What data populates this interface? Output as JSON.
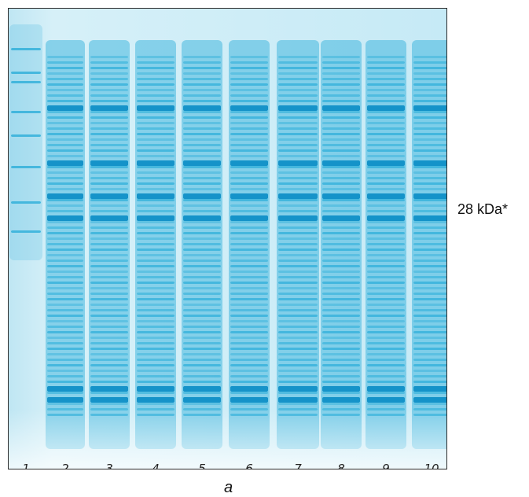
{
  "gel": {
    "marker_label": "28 kDa*",
    "panel_label": "a",
    "lane_labels": [
      "1",
      "2",
      "3",
      "4",
      "5",
      "6",
      "7",
      "8",
      "9",
      "10"
    ]
  },
  "colors": {
    "gel_background": "#bfe6f3",
    "band": "#1aa7d6",
    "band_dark": "#0f8fc7",
    "frame": "#2a2a2a"
  }
}
